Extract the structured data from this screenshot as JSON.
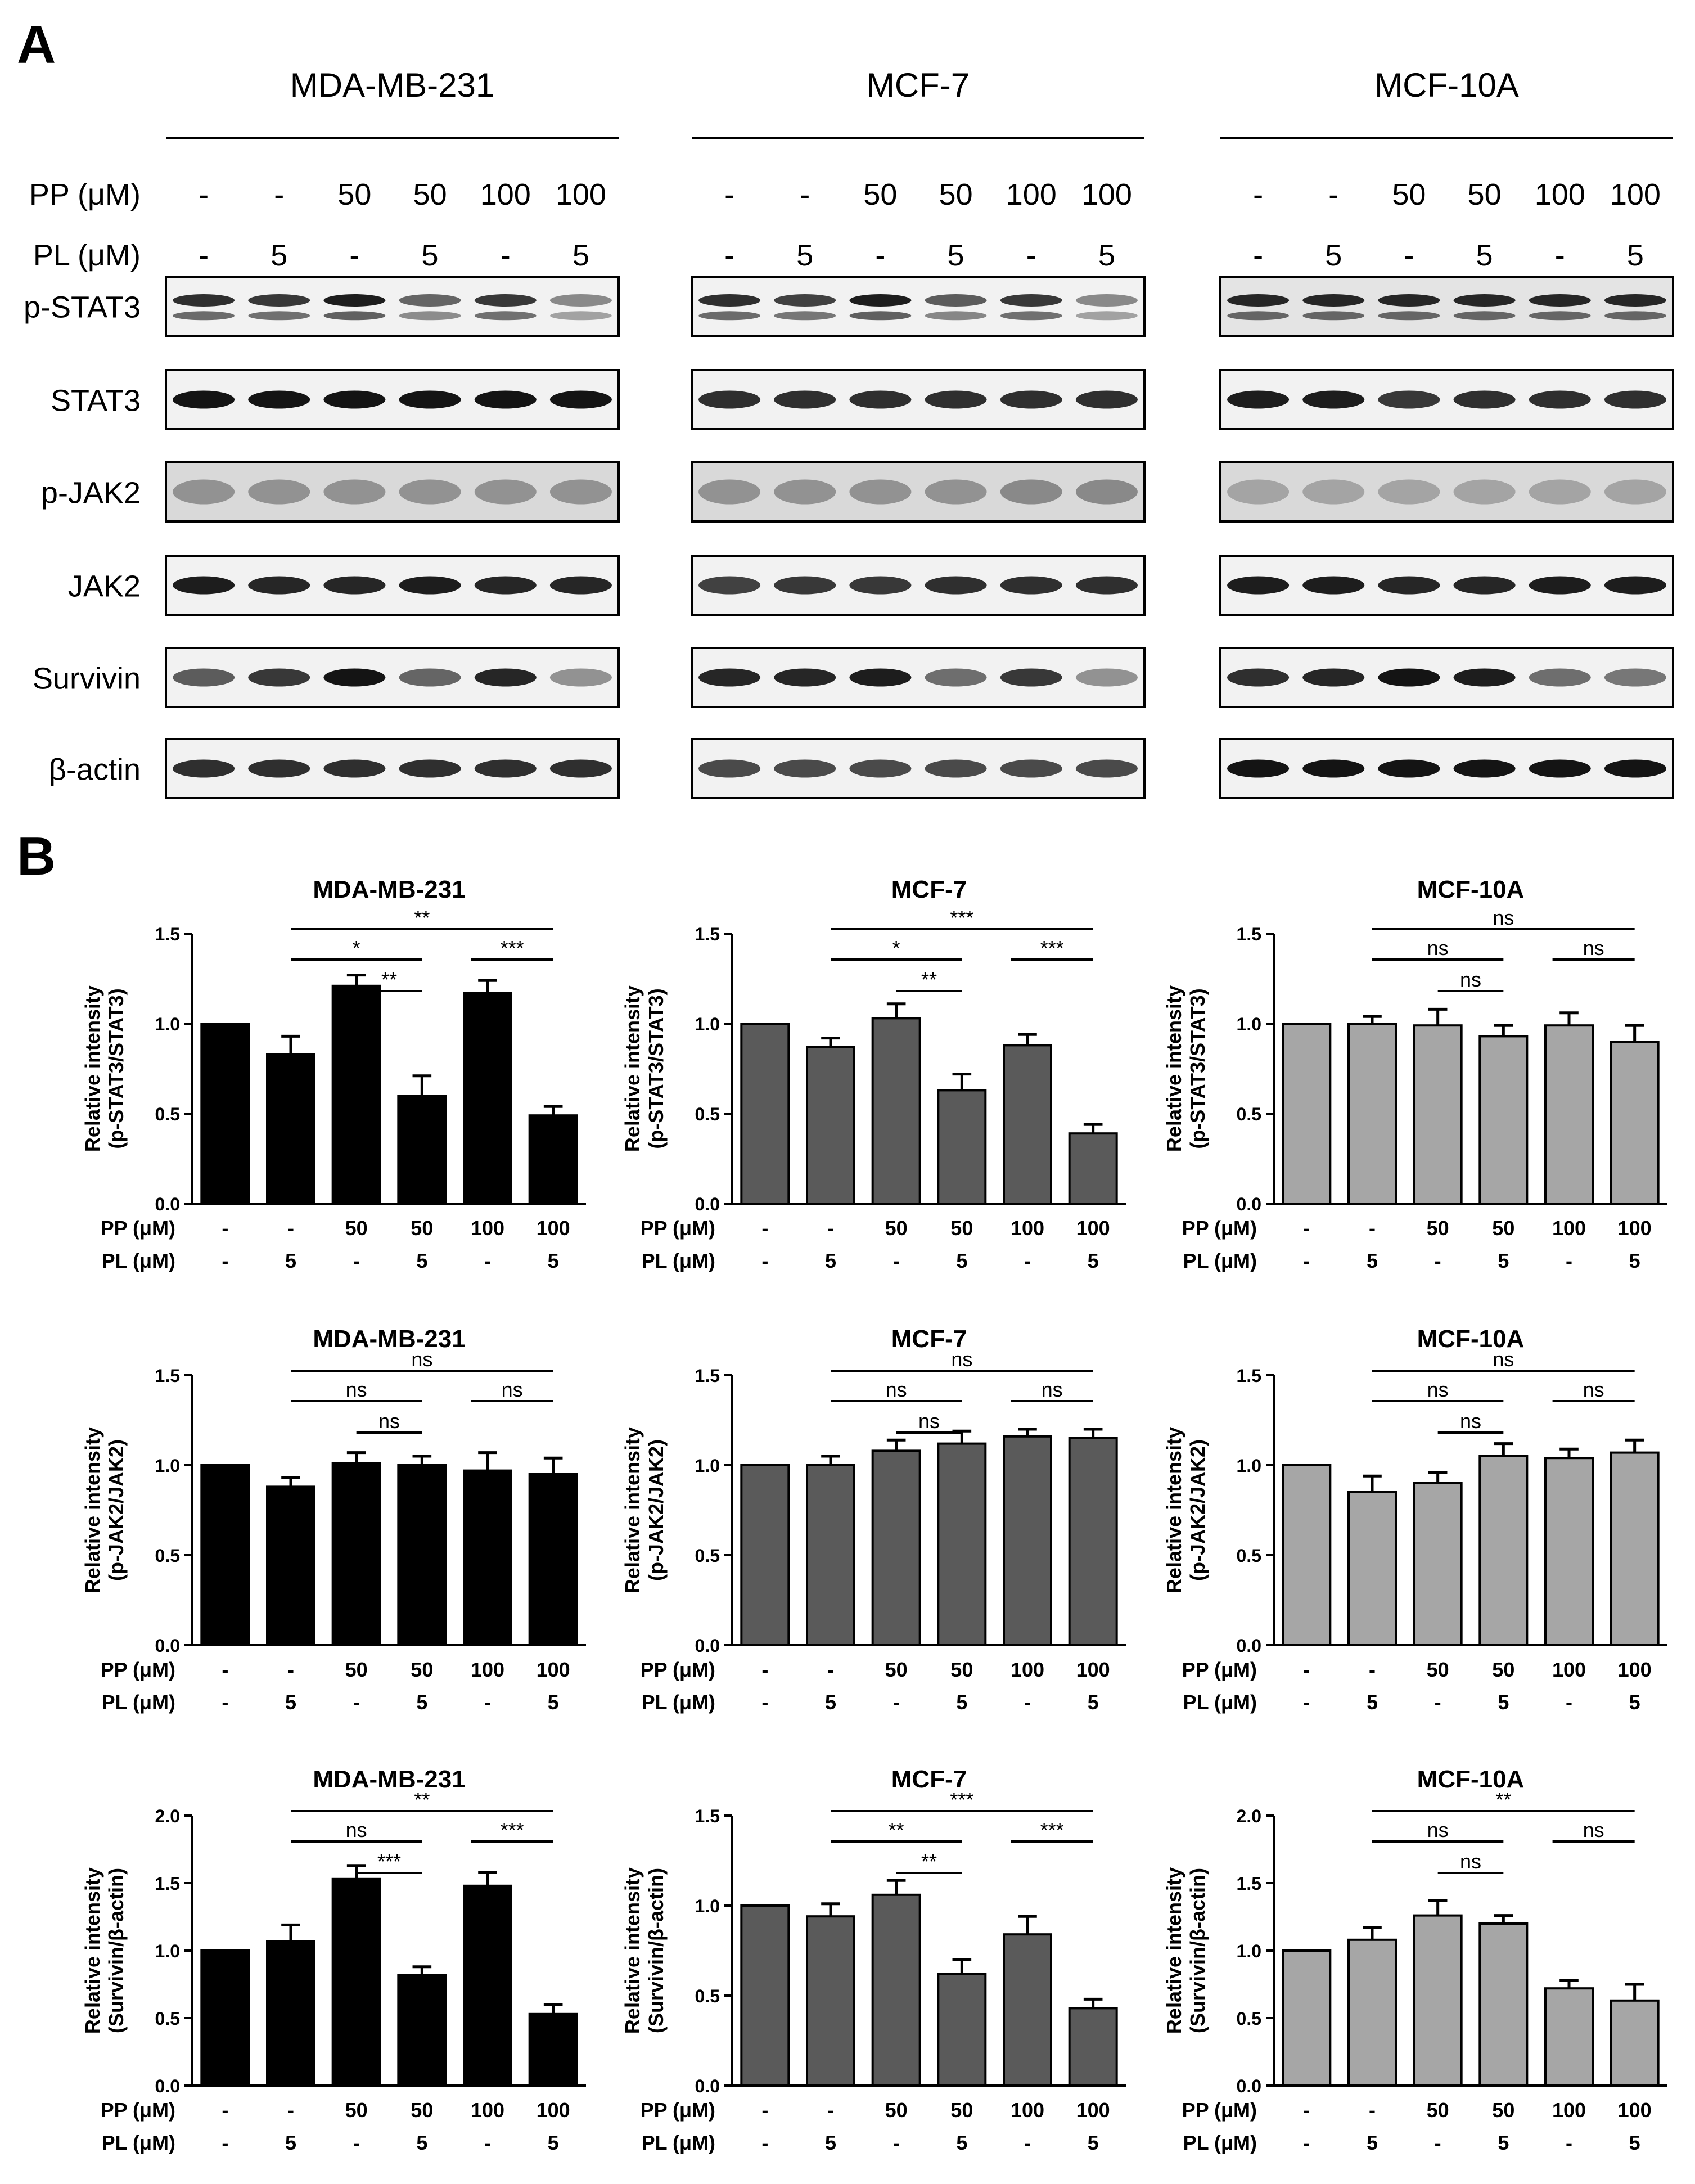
{
  "figure": {
    "panel_a_label": "A",
    "panel_b_label": "B"
  },
  "western_blot": {
    "cell_lines": [
      "MDA-MB-231",
      "MCF-7",
      "MCF-10A"
    ],
    "treatment_rows": [
      {
        "label": "PP (μM)",
        "values": [
          "-",
          "-",
          "50",
          "50",
          "100",
          "100"
        ]
      },
      {
        "label": "PL (μM)",
        "values": [
          "-",
          "5",
          "-",
          "5",
          "-",
          "5"
        ]
      }
    ],
    "proteins": [
      {
        "name": "p-STAT3",
        "doublet": true
      },
      {
        "name": "STAT3",
        "doublet": false
      },
      {
        "name": "p-JAK2",
        "doublet": false
      },
      {
        "name": "JAK2",
        "doublet": false
      },
      {
        "name": "Survivin",
        "doublet": false
      },
      {
        "name": "β-actin",
        "doublet": false
      }
    ],
    "band_intensity": {
      "MDA-MB-231": {
        "p-STAT3": [
          0.85,
          0.8,
          0.95,
          0.55,
          0.8,
          0.35
        ],
        "STAT3": [
          1,
          1,
          1,
          1,
          1,
          1
        ],
        "p-JAK2": [
          0.3,
          0.3,
          0.3,
          0.3,
          0.3,
          0.3
        ],
        "JAK2": [
          0.95,
          0.9,
          0.9,
          0.95,
          0.9,
          0.9
        ],
        "Survivin": [
          0.6,
          0.8,
          1,
          0.55,
          0.9,
          0.3
        ],
        "β-actin": [
          0.85,
          0.85,
          0.85,
          0.85,
          0.85,
          0.85
        ]
      },
      "MCF-7": {
        "p-STAT3": [
          0.85,
          0.75,
          0.95,
          0.6,
          0.8,
          0.35
        ],
        "STAT3": [
          0.85,
          0.85,
          0.85,
          0.85,
          0.85,
          0.85
        ],
        "p-JAK2": [
          0.3,
          0.3,
          0.3,
          0.3,
          0.35,
          0.35
        ],
        "JAK2": [
          0.75,
          0.8,
          0.8,
          0.85,
          0.85,
          0.85
        ],
        "Survivin": [
          0.9,
          0.9,
          0.95,
          0.5,
          0.8,
          0.3
        ],
        "β-actin": [
          0.7,
          0.7,
          0.7,
          0.7,
          0.7,
          0.7
        ]
      },
      "MCF-10A": {
        "p-STAT3": [
          0.9,
          0.9,
          0.9,
          0.9,
          0.9,
          0.9
        ],
        "STAT3": [
          0.95,
          0.95,
          0.8,
          0.85,
          0.85,
          0.85
        ],
        "p-JAK2": [
          0.2,
          0.2,
          0.2,
          0.2,
          0.2,
          0.2
        ],
        "JAK2": [
          0.95,
          0.95,
          0.9,
          0.9,
          0.95,
          0.95
        ],
        "Survivin": [
          0.85,
          0.9,
          1,
          0.95,
          0.5,
          0.45
        ],
        "β-actin": [
          1,
          1,
          1,
          1,
          1,
          1
        ]
      }
    }
  },
  "chart_data": [
    {
      "type": "bar",
      "title": "MDA-MB-231",
      "ylabel_line1": "Relative intensity",
      "ylabel_line2": "(p-STAT3/STAT3)",
      "categories": [
        "1",
        "2",
        "3",
        "4",
        "5",
        "6"
      ],
      "pp_labels": [
        "-",
        "-",
        "50",
        "50",
        "100",
        "100"
      ],
      "pl_labels": [
        "-",
        "5",
        "-",
        "5",
        "-",
        "5"
      ],
      "x_row_labels": [
        "PP (μM)",
        "PL (μM)"
      ],
      "values": [
        1.0,
        0.83,
        1.21,
        0.6,
        1.17,
        0.49
      ],
      "errors": [
        0,
        0.1,
        0.06,
        0.11,
        0.07,
        0.05
      ],
      "ylim": [
        0,
        1.5
      ],
      "yticks": [
        "0.0",
        "0.5",
        "1.0",
        "1.5"
      ],
      "color": "#000000",
      "annotations": [
        {
          "from": 2,
          "to": 4,
          "label": "*"
        },
        {
          "from": 3,
          "to": 4,
          "label": "**"
        },
        {
          "from": 2,
          "to": 6,
          "label": "**"
        },
        {
          "from": 5,
          "to": 6,
          "label": "***"
        }
      ]
    },
    {
      "type": "bar",
      "title": "MCF-7",
      "ylabel_line1": "Relative intensity",
      "ylabel_line2": "(p-STAT3/STAT3)",
      "categories": [
        "1",
        "2",
        "3",
        "4",
        "5",
        "6"
      ],
      "pp_labels": [
        "-",
        "-",
        "50",
        "50",
        "100",
        "100"
      ],
      "pl_labels": [
        "-",
        "5",
        "-",
        "5",
        "-",
        "5"
      ],
      "x_row_labels": [
        "PP (μM)",
        "PL (μM)"
      ],
      "values": [
        1.0,
        0.87,
        1.03,
        0.63,
        0.88,
        0.39
      ],
      "errors": [
        0,
        0.05,
        0.08,
        0.09,
        0.06,
        0.05
      ],
      "ylim": [
        0,
        1.5
      ],
      "yticks": [
        "0.0",
        "0.5",
        "1.0",
        "1.5"
      ],
      "color": "#5a5a5a",
      "annotations": [
        {
          "from": 2,
          "to": 4,
          "label": "*"
        },
        {
          "from": 3,
          "to": 4,
          "label": "**"
        },
        {
          "from": 2,
          "to": 6,
          "label": "***"
        },
        {
          "from": 5,
          "to": 6,
          "label": "***"
        }
      ]
    },
    {
      "type": "bar",
      "title": "MCF-10A",
      "ylabel_line1": "Relative intensity",
      "ylabel_line2": "(p-STAT3/STAT3)",
      "categories": [
        "1",
        "2",
        "3",
        "4",
        "5",
        "6"
      ],
      "pp_labels": [
        "-",
        "-",
        "50",
        "50",
        "100",
        "100"
      ],
      "pl_labels": [
        "-",
        "5",
        "-",
        "5",
        "-",
        "5"
      ],
      "x_row_labels": [
        "PP (μM)",
        "PL (μM)"
      ],
      "values": [
        1.0,
        1.0,
        0.99,
        0.93,
        0.99,
        0.9
      ],
      "errors": [
        0,
        0.04,
        0.09,
        0.06,
        0.07,
        0.09
      ],
      "ylim": [
        0,
        1.5
      ],
      "yticks": [
        "0.0",
        "0.5",
        "1.0",
        "1.5"
      ],
      "color": "#a6a6a6",
      "annotations": [
        {
          "from": 2,
          "to": 4,
          "label": "ns"
        },
        {
          "from": 3,
          "to": 4,
          "label": "ns"
        },
        {
          "from": 2,
          "to": 6,
          "label": "ns"
        },
        {
          "from": 5,
          "to": 6,
          "label": "ns"
        }
      ]
    },
    {
      "type": "bar",
      "title": "MDA-MB-231",
      "ylabel_line1": "Relative intensity",
      "ylabel_line2": "(p-JAK2/JAK2)",
      "categories": [
        "1",
        "2",
        "3",
        "4",
        "5",
        "6"
      ],
      "pp_labels": [
        "-",
        "-",
        "50",
        "50",
        "100",
        "100"
      ],
      "pl_labels": [
        "-",
        "5",
        "-",
        "5",
        "-",
        "5"
      ],
      "x_row_labels": [
        "PP (μM)",
        "PL (μM)"
      ],
      "values": [
        1.0,
        0.88,
        1.01,
        1.0,
        0.97,
        0.95
      ],
      "errors": [
        0,
        0.05,
        0.06,
        0.05,
        0.1,
        0.09
      ],
      "ylim": [
        0,
        1.5
      ],
      "yticks": [
        "0.0",
        "0.5",
        "1.0",
        "1.5"
      ],
      "color": "#000000",
      "annotations": [
        {
          "from": 2,
          "to": 4,
          "label": "ns"
        },
        {
          "from": 3,
          "to": 4,
          "label": "ns"
        },
        {
          "from": 2,
          "to": 6,
          "label": "ns"
        },
        {
          "from": 5,
          "to": 6,
          "label": "ns"
        }
      ]
    },
    {
      "type": "bar",
      "title": "MCF-7",
      "ylabel_line1": "Relative intensity",
      "ylabel_line2": "(p-JAK2/JAK2)",
      "categories": [
        "1",
        "2",
        "3",
        "4",
        "5",
        "6"
      ],
      "pp_labels": [
        "-",
        "-",
        "50",
        "50",
        "100",
        "100"
      ],
      "pl_labels": [
        "-",
        "5",
        "-",
        "5",
        "-",
        "5"
      ],
      "x_row_labels": [
        "PP (μM)",
        "PL (μM)"
      ],
      "values": [
        1.0,
        1.0,
        1.08,
        1.12,
        1.16,
        1.15
      ],
      "errors": [
        0,
        0.05,
        0.06,
        0.07,
        0.04,
        0.05
      ],
      "ylim": [
        0,
        1.5
      ],
      "yticks": [
        "0.0",
        "0.5",
        "1.0",
        "1.5"
      ],
      "color": "#5a5a5a",
      "annotations": [
        {
          "from": 2,
          "to": 4,
          "label": "ns"
        },
        {
          "from": 3,
          "to": 4,
          "label": "ns"
        },
        {
          "from": 2,
          "to": 6,
          "label": "ns"
        },
        {
          "from": 5,
          "to": 6,
          "label": "ns"
        }
      ]
    },
    {
      "type": "bar",
      "title": "MCF-10A",
      "ylabel_line1": "Relative intensity",
      "ylabel_line2": "(p-JAK2/JAK2)",
      "categories": [
        "1",
        "2",
        "3",
        "4",
        "5",
        "6"
      ],
      "pp_labels": [
        "-",
        "-",
        "50",
        "50",
        "100",
        "100"
      ],
      "pl_labels": [
        "-",
        "5",
        "-",
        "5",
        "-",
        "5"
      ],
      "x_row_labels": [
        "PP (μM)",
        "PL (μM)"
      ],
      "values": [
        1.0,
        0.85,
        0.9,
        1.05,
        1.04,
        1.07
      ],
      "errors": [
        0,
        0.09,
        0.06,
        0.07,
        0.05,
        0.07
      ],
      "ylim": [
        0,
        1.5
      ],
      "yticks": [
        "0.0",
        "0.5",
        "1.0",
        "1.5"
      ],
      "color": "#a6a6a6",
      "annotations": [
        {
          "from": 2,
          "to": 4,
          "label": "ns"
        },
        {
          "from": 3,
          "to": 4,
          "label": "ns"
        },
        {
          "from": 2,
          "to": 6,
          "label": "ns"
        },
        {
          "from": 5,
          "to": 6,
          "label": "ns"
        }
      ]
    },
    {
      "type": "bar",
      "title": "MDA-MB-231",
      "ylabel_line1": "Relative intensity",
      "ylabel_line2": "(Survivin/β-actin)",
      "categories": [
        "1",
        "2",
        "3",
        "4",
        "5",
        "6"
      ],
      "pp_labels": [
        "-",
        "-",
        "50",
        "50",
        "100",
        "100"
      ],
      "pl_labels": [
        "-",
        "5",
        "-",
        "5",
        "-",
        "5"
      ],
      "x_row_labels": [
        "PP (μM)",
        "PL (μM)"
      ],
      "values": [
        1.0,
        1.07,
        1.53,
        0.82,
        1.48,
        0.53
      ],
      "errors": [
        0,
        0.12,
        0.1,
        0.06,
        0.1,
        0.07
      ],
      "ylim": [
        0,
        2.0
      ],
      "yticks": [
        "0.0",
        "0.5",
        "1.0",
        "1.5",
        "2.0"
      ],
      "color": "#000000",
      "annotations": [
        {
          "from": 2,
          "to": 4,
          "label": "ns"
        },
        {
          "from": 3,
          "to": 4,
          "label": "***"
        },
        {
          "from": 2,
          "to": 6,
          "label": "**"
        },
        {
          "from": 5,
          "to": 6,
          "label": "***"
        }
      ]
    },
    {
      "type": "bar",
      "title": "MCF-7",
      "ylabel_line1": "Relative intensity",
      "ylabel_line2": "(Survivin/β-actin)",
      "categories": [
        "1",
        "2",
        "3",
        "4",
        "5",
        "6"
      ],
      "pp_labels": [
        "-",
        "-",
        "50",
        "50",
        "100",
        "100"
      ],
      "pl_labels": [
        "-",
        "5",
        "-",
        "5",
        "-",
        "5"
      ],
      "x_row_labels": [
        "PP (μM)",
        "PL (μM)"
      ],
      "values": [
        1.0,
        0.94,
        1.06,
        0.62,
        0.84,
        0.43
      ],
      "errors": [
        0,
        0.07,
        0.08,
        0.08,
        0.1,
        0.05
      ],
      "ylim": [
        0,
        1.5
      ],
      "yticks": [
        "0.0",
        "0.5",
        "1.0",
        "1.5"
      ],
      "color": "#5a5a5a",
      "annotations": [
        {
          "from": 2,
          "to": 4,
          "label": "**"
        },
        {
          "from": 3,
          "to": 4,
          "label": "**"
        },
        {
          "from": 2,
          "to": 6,
          "label": "***"
        },
        {
          "from": 5,
          "to": 6,
          "label": "***"
        }
      ]
    },
    {
      "type": "bar",
      "title": "MCF-10A",
      "ylabel_line1": "Relative intensity",
      "ylabel_line2": "(Survivin/β-actin)",
      "categories": [
        "1",
        "2",
        "3",
        "4",
        "5",
        "6"
      ],
      "pp_labels": [
        "-",
        "-",
        "50",
        "50",
        "100",
        "100"
      ],
      "pl_labels": [
        "-",
        "5",
        "-",
        "5",
        "-",
        "5"
      ],
      "x_row_labels": [
        "PP (μM)",
        "PL (μM)"
      ],
      "values": [
        1.0,
        1.08,
        1.26,
        1.2,
        0.72,
        0.63
      ],
      "errors": [
        0,
        0.09,
        0.11,
        0.06,
        0.06,
        0.12
      ],
      "ylim": [
        0,
        2.0
      ],
      "yticks": [
        "0.0",
        "0.5",
        "1.0",
        "1.5",
        "2.0"
      ],
      "color": "#a6a6a6",
      "annotations": [
        {
          "from": 2,
          "to": 4,
          "label": "ns"
        },
        {
          "from": 3,
          "to": 4,
          "label": "ns"
        },
        {
          "from": 2,
          "to": 6,
          "label": "**"
        },
        {
          "from": 5,
          "to": 6,
          "label": "ns"
        }
      ]
    }
  ]
}
